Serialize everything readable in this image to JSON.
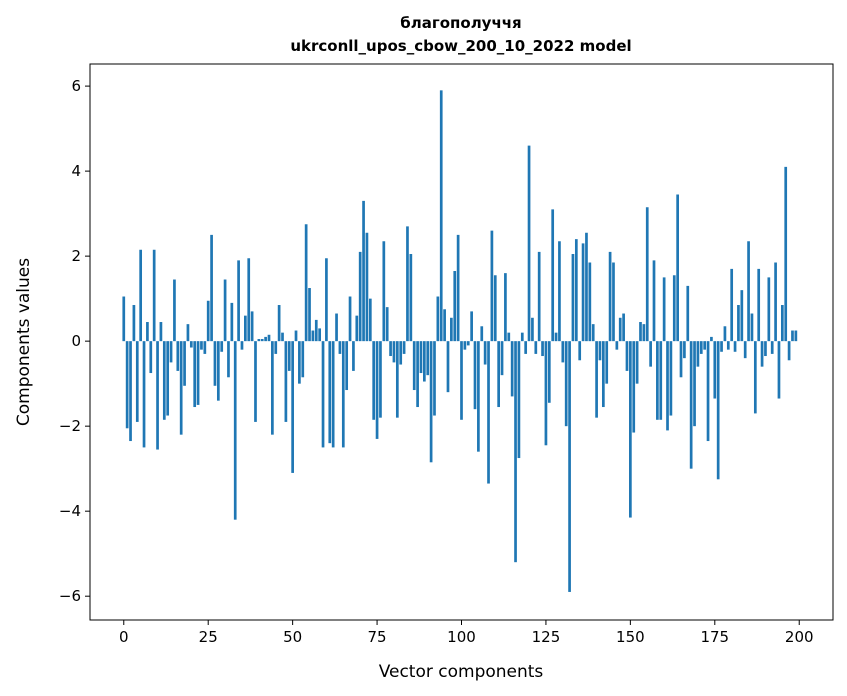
{
  "chart_data": {
    "type": "bar",
    "title": "благополуччя",
    "subtitle": "ukrconll_upos_cbow_200_10_2022 model",
    "xlabel": "Vector components",
    "ylabel": "Components values",
    "xlim": [
      -10,
      210
    ],
    "ylim": [
      -6.56,
      6.52
    ],
    "xticks": [
      0,
      25,
      50,
      75,
      100,
      125,
      150,
      175,
      200
    ],
    "yticks": [
      -6,
      -4,
      -2,
      0,
      2,
      4,
      6
    ],
    "ytick_labels": [
      "−6",
      "−4",
      "−2",
      "0",
      "2",
      "4",
      "6"
    ],
    "grid": false,
    "bar_color": "#1f77b4",
    "values": [
      1.05,
      -2.05,
      -2.35,
      0.85,
      -1.9,
      2.15,
      -2.5,
      0.45,
      -0.75,
      2.15,
      -2.55,
      0.45,
      -1.85,
      -1.75,
      -0.5,
      1.45,
      -0.7,
      -2.2,
      -1.05,
      0.4,
      -0.15,
      -1.55,
      -1.5,
      -0.2,
      -0.3,
      0.95,
      2.5,
      -1.05,
      -1.4,
      -0.25,
      1.45,
      -0.85,
      0.9,
      -4.2,
      1.9,
      -0.2,
      0.6,
      1.95,
      0.7,
      -1.9,
      0.05,
      0.05,
      0.1,
      0.15,
      -2.2,
      -0.3,
      0.85,
      0.2,
      -1.9,
      -0.7,
      -3.1,
      0.25,
      -1.0,
      -0.85,
      2.75,
      1.25,
      0.25,
      0.5,
      0.3,
      -2.5,
      1.95,
      -2.4,
      -2.5,
      0.65,
      -0.3,
      -2.5,
      -1.15,
      1.05,
      -0.7,
      0.6,
      2.1,
      3.3,
      2.55,
      1.0,
      -1.85,
      -2.3,
      -1.8,
      2.35,
      0.8,
      -0.35,
      -0.5,
      -1.8,
      -0.55,
      -0.3,
      2.7,
      2.05,
      -1.15,
      -1.55,
      -0.75,
      -0.95,
      -0.8,
      -2.85,
      -1.75,
      1.05,
      5.9,
      0.75,
      -1.2,
      0.55,
      1.65,
      2.5,
      -1.85,
      -0.2,
      -0.1,
      0.7,
      -1.6,
      -2.6,
      0.35,
      -0.55,
      -3.35,
      2.6,
      1.55,
      -1.55,
      -0.8,
      1.6,
      0.2,
      -1.3,
      -5.2,
      -2.75,
      0.2,
      -0.3,
      4.6,
      0.55,
      -0.3,
      2.1,
      -0.35,
      -2.45,
      -1.45,
      3.1,
      0.2,
      2.35,
      -0.5,
      -2.0,
      -5.9,
      2.05,
      2.4,
      -0.45,
      2.3,
      2.55,
      1.85,
      0.4,
      -1.8,
      -0.45,
      -1.55,
      -1.0,
      2.1,
      1.85,
      -0.2,
      0.55,
      0.65,
      -0.7,
      -4.15,
      -2.15,
      -1.0,
      0.45,
      0.4,
      3.15,
      -0.6,
      1.9,
      -1.85,
      -1.85,
      1.5,
      -2.1,
      -1.75,
      1.55,
      3.45,
      -0.85,
      -0.4,
      1.3,
      -3.0,
      -2.0,
      -0.6,
      -0.3,
      -0.2,
      -2.35,
      0.1,
      -1.35,
      -3.25,
      -0.25,
      0.35,
      -0.2,
      1.7,
      -0.25,
      0.85,
      1.2,
      -0.4,
      2.35,
      0.65,
      -1.7,
      1.7,
      -0.6,
      -0.35,
      1.5,
      -0.3,
      1.85,
      -1.35,
      0.85,
      4.1,
      -0.45,
      0.25,
      0.25
    ]
  }
}
